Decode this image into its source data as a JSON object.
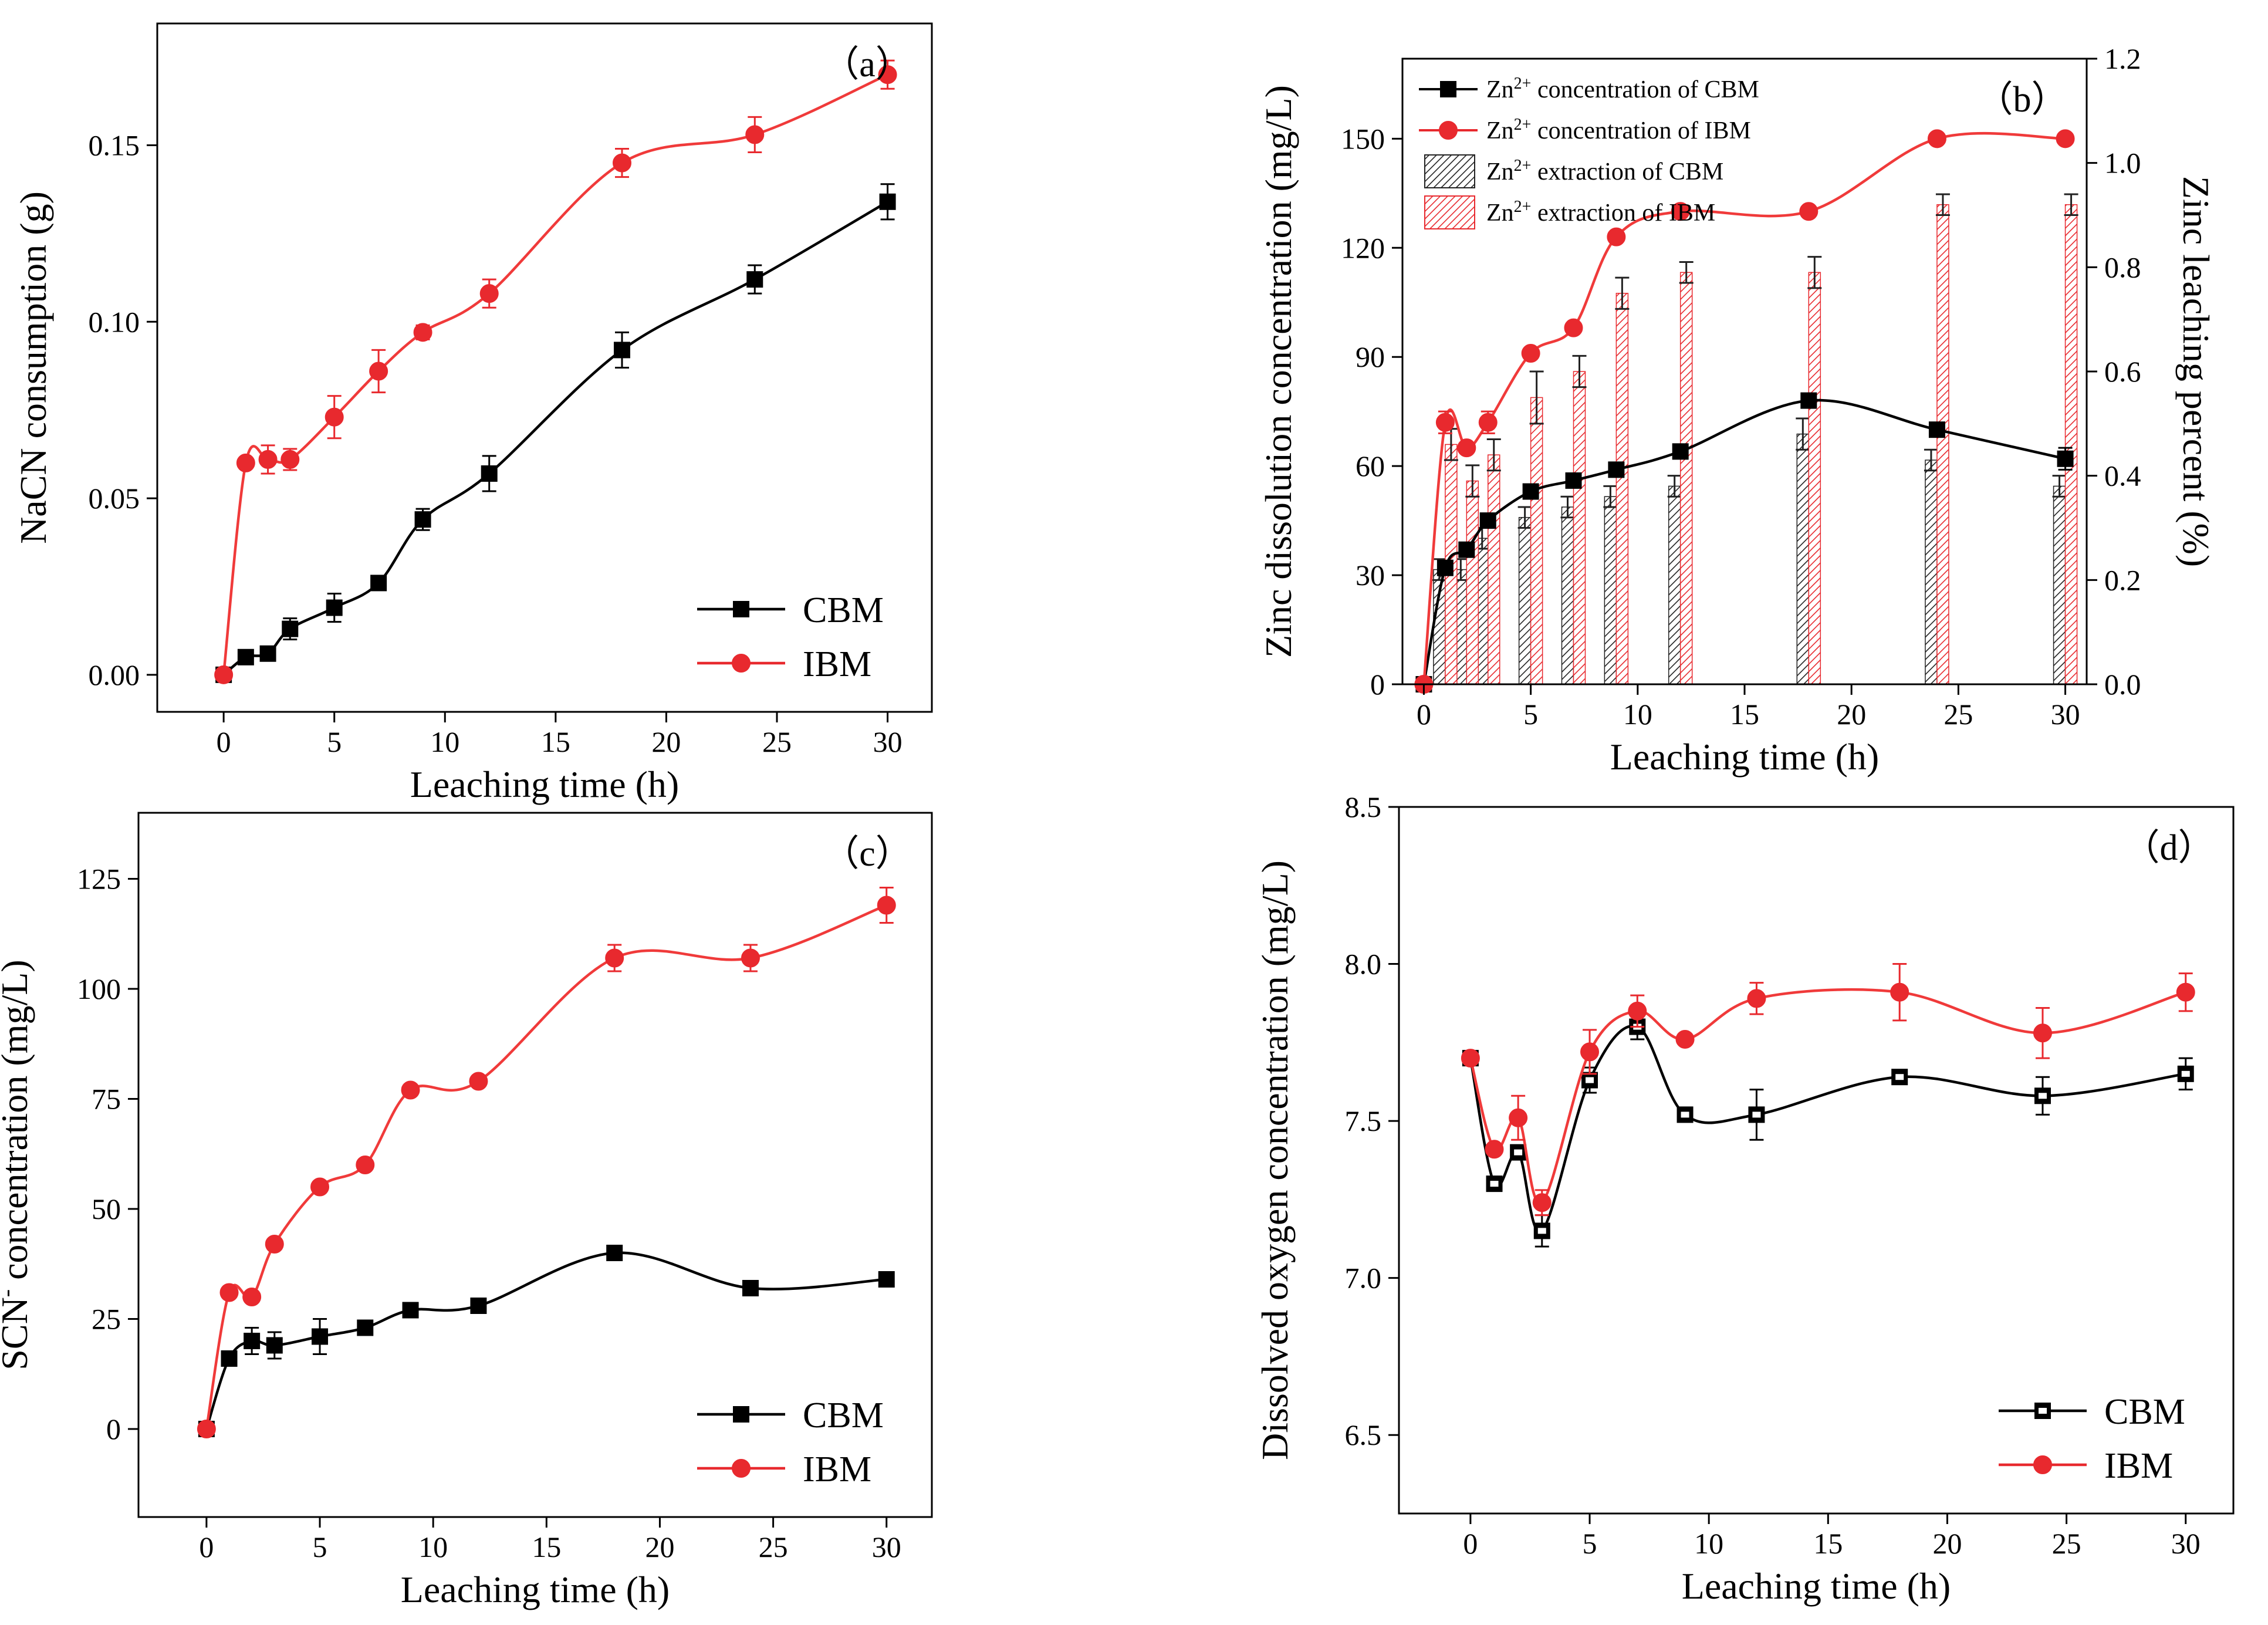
{
  "figure": {
    "colors": {
      "cbm": "#000000",
      "ibm": "#e8292e",
      "ibm_line": "#f03a3a"
    }
  },
  "chart_data": [
    {
      "id": "a",
      "type": "line",
      "panel_label": "（a）",
      "xlabel": "Leaching time (h)",
      "ylabel": "NaCN consumption (g)",
      "xlim": [
        -3,
        32
      ],
      "ylim": [
        -0.0105,
        0.1845
      ],
      "xticks": [
        0,
        5,
        10,
        15,
        20,
        25,
        30
      ],
      "yticks": [
        0.0,
        0.05,
        0.1,
        0.15
      ],
      "ytick_labels": [
        "0.00",
        "0.05",
        "0.10",
        "0.15"
      ],
      "legend": {
        "position": "bottom-right",
        "entries": [
          "CBM",
          "IBM"
        ]
      },
      "series": [
        {
          "name": "CBM",
          "marker": "square",
          "x": [
            0,
            1,
            2,
            3,
            5,
            7,
            9,
            12,
            18,
            24,
            30
          ],
          "y": [
            0.0,
            0.005,
            0.006,
            0.013,
            0.019,
            0.026,
            0.044,
            0.057,
            0.092,
            0.112,
            0.134
          ],
          "err": [
            0,
            0,
            0.001,
            0.003,
            0.004,
            0.001,
            0.003,
            0.005,
            0.005,
            0.004,
            0.005
          ]
        },
        {
          "name": "IBM",
          "marker": "circle",
          "x": [
            0,
            1,
            2,
            3,
            5,
            7,
            9,
            12,
            18,
            24,
            30
          ],
          "y": [
            0.0,
            0.06,
            0.061,
            0.061,
            0.073,
            0.086,
            0.097,
            0.108,
            0.145,
            0.153,
            0.17
          ],
          "err": [
            0,
            0,
            0.004,
            0.003,
            0.006,
            0.006,
            0.002,
            0.004,
            0.004,
            0.005,
            0.004
          ]
        }
      ]
    },
    {
      "id": "b",
      "type": "line+bar",
      "panel_label": "（b）",
      "xlabel": "Leaching time (h)",
      "ylabel": "Zinc dissolution concentration (mg/L)",
      "ylabel_right": "Zinc leaching percent (%)",
      "xlim": [
        -1,
        31
      ],
      "ylim": [
        0,
        172
      ],
      "ylim_right": [
        0,
        1.2
      ],
      "xticks": [
        0,
        5,
        10,
        15,
        20,
        25,
        30
      ],
      "yticks": [
        0,
        30,
        60,
        90,
        120,
        150
      ],
      "yticks_right": [
        0.0,
        0.2,
        0.4,
        0.6,
        0.8,
        1.0,
        1.2
      ],
      "ytick_labels_right": [
        "0.0",
        "0.2",
        "0.4",
        "0.6",
        "0.8",
        "1.0",
        "1.2"
      ],
      "legend": {
        "position": "top-left",
        "entries": [
          {
            "prefix": "Zn",
            "sup": "2+",
            "suffix": " concentration of CBM"
          },
          {
            "prefix": "Zn",
            "sup": "2+",
            "suffix": " concentration of IBM"
          },
          {
            "prefix": "Zn",
            "sup": "2+",
            "suffix": " extraction of CBM"
          },
          {
            "prefix": "Zn",
            "sup": "2+",
            "suffix": " extraction of IBM"
          }
        ]
      },
      "series": [
        {
          "name": "Zn2+ concentration of CBM",
          "marker": "square",
          "axis": "left",
          "x": [
            0,
            1,
            2,
            3,
            5,
            7,
            9,
            12,
            18,
            24,
            30
          ],
          "y": [
            0,
            32,
            37,
            45,
            53,
            56,
            59,
            64,
            78,
            70,
            62
          ],
          "err": [
            0,
            0,
            0,
            0,
            0,
            0,
            0,
            0,
            0,
            0,
            3
          ]
        },
        {
          "name": "Zn2+ concentration of IBM",
          "marker": "circle",
          "axis": "left",
          "x": [
            0,
            1,
            2,
            3,
            5,
            7,
            9,
            12,
            18,
            24,
            30
          ],
          "y": [
            0,
            72,
            65,
            72,
            91,
            98,
            123,
            130,
            130,
            150,
            150
          ],
          "err": [
            0,
            3,
            0,
            3,
            0,
            0,
            0,
            0,
            0,
            0,
            0
          ]
        },
        {
          "name": "Zn2+ extraction of CBM",
          "bar": "hatched-black",
          "axis": "right",
          "x": [
            1,
            2,
            3,
            5,
            7,
            9,
            12,
            18,
            24,
            30
          ],
          "y": [
            0.22,
            0.22,
            0.28,
            0.32,
            0.34,
            0.36,
            0.38,
            0.48,
            0.43,
            0.38
          ],
          "err": [
            0.02,
            0.02,
            0.02,
            0.02,
            0.02,
            0.02,
            0.02,
            0.03,
            0.02,
            0.02
          ]
        },
        {
          "name": "Zn2+ extraction of IBM",
          "bar": "hatched-red",
          "axis": "right",
          "x": [
            1,
            2,
            3,
            5,
            7,
            9,
            12,
            18,
            24,
            30
          ],
          "y": [
            0.46,
            0.39,
            0.44,
            0.55,
            0.6,
            0.75,
            0.79,
            0.79,
            0.92,
            0.92
          ],
          "err": [
            0.03,
            0.03,
            0.03,
            0.05,
            0.03,
            0.03,
            0.02,
            0.03,
            0.02,
            0.02
          ]
        }
      ]
    },
    {
      "id": "c",
      "type": "line",
      "panel_label": "（c）",
      "xlabel": "Leaching time (h)",
      "ylabel_parts": [
        "SCN",
        "-",
        " concentration (mg/L)"
      ],
      "xlim": [
        -3,
        32
      ],
      "ylim": [
        -20,
        140
      ],
      "xticks": [
        0,
        5,
        10,
        15,
        20,
        25,
        30
      ],
      "yticks": [
        0,
        25,
        50,
        75,
        100,
        125
      ],
      "legend": {
        "position": "bottom-right",
        "entries": [
          "CBM",
          "IBM"
        ]
      },
      "series": [
        {
          "name": "CBM",
          "marker": "square",
          "x": [
            0,
            1,
            2,
            3,
            5,
            7,
            9,
            12,
            18,
            24,
            30
          ],
          "y": [
            0,
            16,
            20,
            19,
            21,
            23,
            27,
            28,
            40,
            32,
            34
          ],
          "err": [
            0,
            0,
            3,
            3,
            4,
            0,
            0,
            0,
            0,
            0,
            0
          ]
        },
        {
          "name": "IBM",
          "marker": "circle",
          "x": [
            0,
            1,
            2,
            3,
            5,
            7,
            9,
            12,
            18,
            24,
            30
          ],
          "y": [
            0,
            31,
            30,
            42,
            55,
            60,
            77,
            79,
            107,
            107,
            119
          ],
          "err": [
            0,
            0,
            0,
            0,
            0,
            0,
            0,
            0,
            3,
            3,
            4
          ]
        }
      ]
    },
    {
      "id": "d",
      "type": "line",
      "panel_label": "（d）",
      "xlabel": "Leaching time (h)",
      "ylabel": "Dissolved oxygen concentration (mg/L)",
      "xlim": [
        -3,
        32
      ],
      "ylim": [
        6.25,
        8.5
      ],
      "xticks": [
        0,
        5,
        10,
        15,
        20,
        25,
        30
      ],
      "yticks": [
        6.5,
        7.0,
        7.5,
        8.0,
        8.5
      ],
      "ytick_labels": [
        "6.5",
        "7.0",
        "7.5",
        "8.0",
        "8.5"
      ],
      "legend": {
        "position": "bottom-right",
        "entries": [
          "CBM",
          "IBM"
        ]
      },
      "series": [
        {
          "name": "CBM",
          "marker": "square-hollow",
          "x": [
            0,
            1,
            2,
            3,
            5,
            7,
            9,
            12,
            18,
            24,
            30
          ],
          "y": [
            7.7,
            7.3,
            7.4,
            7.15,
            7.63,
            7.8,
            7.52,
            7.52,
            7.64,
            7.58,
            7.65
          ],
          "err": [
            0,
            0,
            0,
            0.05,
            0.04,
            0.04,
            0,
            0.08,
            0,
            0.06,
            0.05
          ]
        },
        {
          "name": "IBM",
          "marker": "circle",
          "x": [
            0,
            1,
            2,
            3,
            5,
            7,
            9,
            12,
            18,
            24,
            30
          ],
          "y": [
            7.7,
            7.41,
            7.51,
            7.24,
            7.72,
            7.85,
            7.76,
            7.89,
            7.91,
            7.78,
            7.91
          ],
          "err": [
            0,
            0,
            0.07,
            0.04,
            0.07,
            0.05,
            0,
            0.05,
            0.09,
            0.08,
            0.06
          ]
        }
      ]
    }
  ]
}
